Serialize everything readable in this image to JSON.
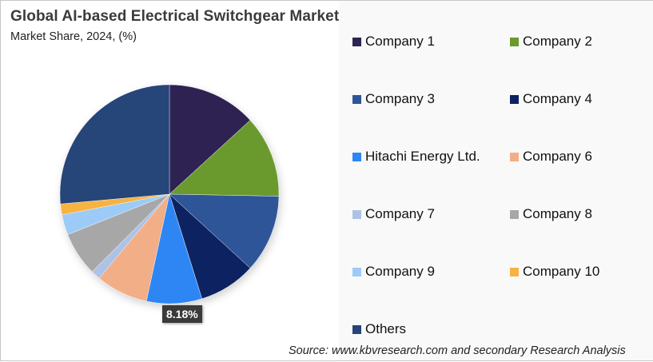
{
  "header": {
    "title": "Global AI-based  Electrical Switchgear Market",
    "subtitle": "Market Share, 2024, (%)"
  },
  "source": "Source: www.kbvresearch.com and secondary Research Analysis",
  "highlight_label": "8.18%",
  "chart_data": {
    "type": "pie",
    "title": "Global AI-based  Electrical Switchgear Market",
    "subtitle": "Market Share, 2024, (%)",
    "start_angle_deg": 0,
    "direction": "clockwise",
    "legend_position": "right",
    "categories": [
      "Company 1",
      "Company 2",
      "Company 3",
      "Company 4",
      "Hitachi Energy Ltd.",
      "Company 6",
      "Company 7",
      "Company 8",
      "Company 9",
      "Company 10",
      "Others"
    ],
    "values": [
      13.2,
      12.1,
      11.5,
      8.4,
      8.18,
      7.7,
      1.4,
      6.5,
      3.0,
      1.6,
      26.42
    ],
    "colors": [
      "#2e2452",
      "#6a9a2e",
      "#2f5597",
      "#0a2360",
      "#2e86f5",
      "#f2ae86",
      "#adc3e6",
      "#a7a7a7",
      "#9ccbf7",
      "#f7b342",
      "#264478"
    ],
    "data_labels": [
      {
        "category": "Hitachi Energy Ltd.",
        "text": "8.18%"
      }
    ]
  },
  "legend": {
    "items": [
      {
        "label": "Company 1",
        "color": "#2e2452"
      },
      {
        "label": "Company 2",
        "color": "#6a9a2e"
      },
      {
        "label": "Company 3",
        "color": "#2f5597"
      },
      {
        "label": "Company 4",
        "color": "#0a2360"
      },
      {
        "label": "Hitachi Energy Ltd.",
        "color": "#2e86f5"
      },
      {
        "label": "Company 6",
        "color": "#f2ae86"
      },
      {
        "label": "Company 7",
        "color": "#adc3e6"
      },
      {
        "label": "Company 8",
        "color": "#a7a7a7"
      },
      {
        "label": "Company 9",
        "color": "#9ccbf7"
      },
      {
        "label": "Company 10",
        "color": "#f7b342"
      },
      {
        "label": "Others",
        "color": "#264478"
      }
    ]
  }
}
